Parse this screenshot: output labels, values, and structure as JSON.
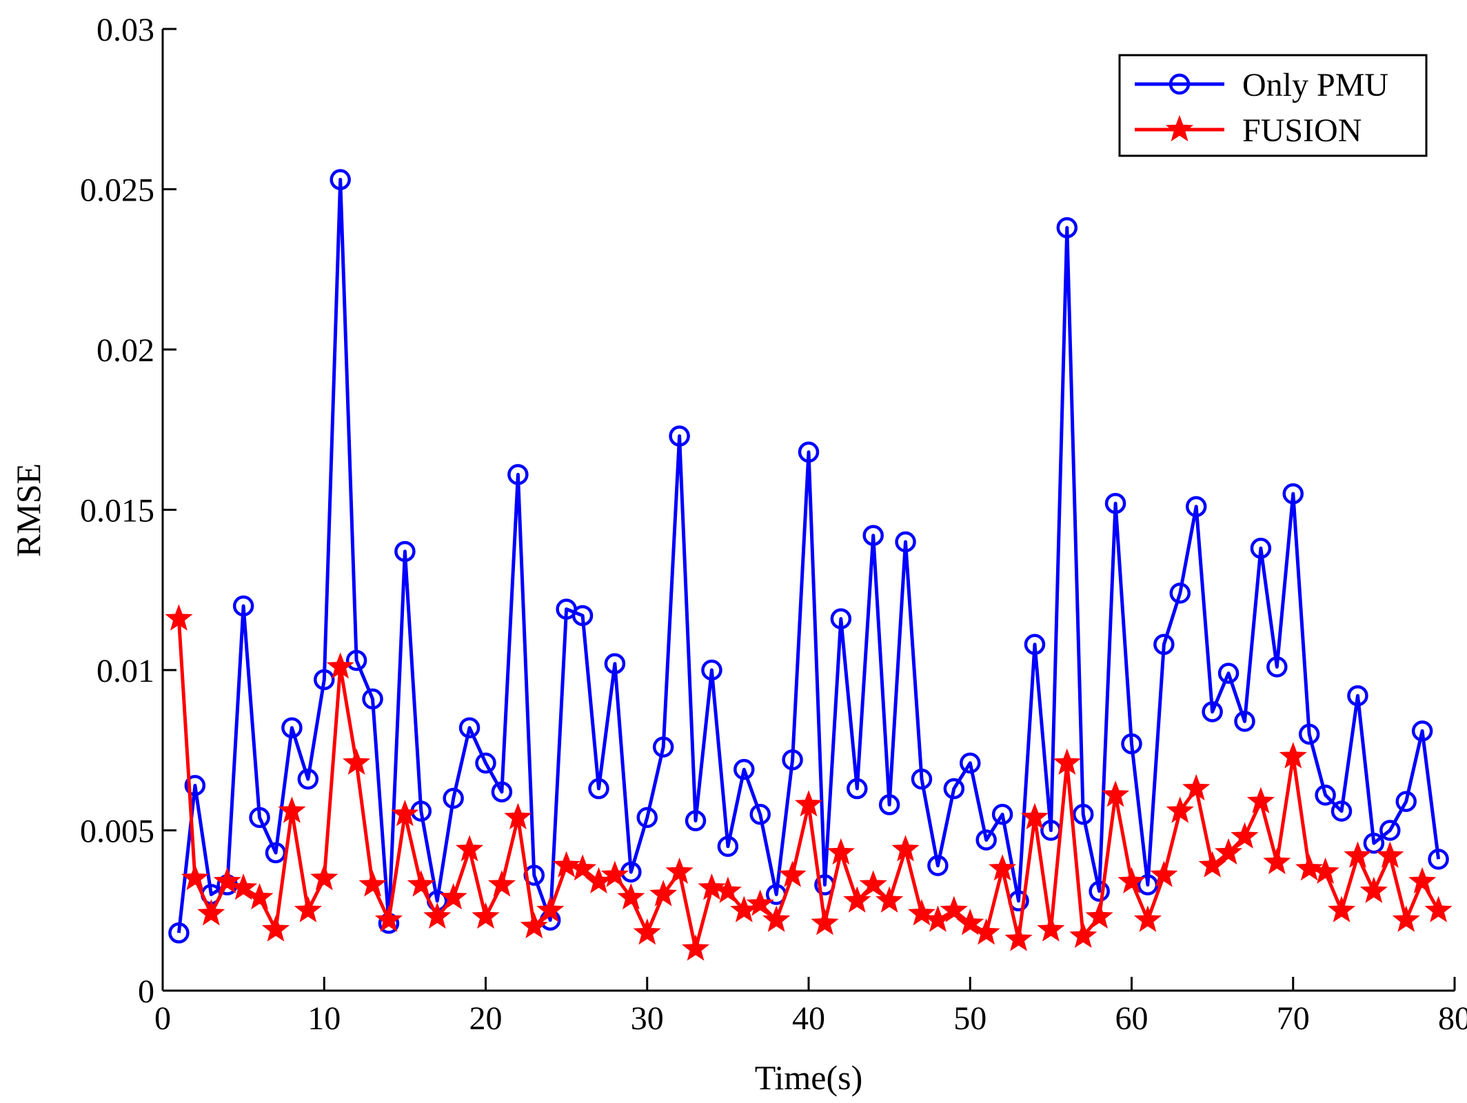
{
  "chart_data": {
    "type": "line",
    "title": "",
    "xlabel": "Time(s)",
    "ylabel": "RMSE",
    "xlim": [
      0,
      80
    ],
    "ylim": [
      0,
      0.03
    ],
    "grid": false,
    "legend_position": "top-right",
    "x_ticks": [
      0,
      10,
      20,
      30,
      40,
      50,
      60,
      70,
      80
    ],
    "x_tick_labels": [
      "0",
      "10",
      "20",
      "30",
      "40",
      "50",
      "60",
      "70",
      "80"
    ],
    "y_ticks": [
      0,
      0.005,
      0.01,
      0.015,
      0.02,
      0.025,
      0.03
    ],
    "y_tick_labels": [
      "0",
      "0.005",
      "0.01",
      "0.015",
      "0.02",
      "0.025",
      "0.03"
    ],
    "x": [
      1,
      2,
      3,
      4,
      5,
      6,
      7,
      8,
      9,
      10,
      11,
      12,
      13,
      14,
      15,
      16,
      17,
      18,
      19,
      20,
      21,
      22,
      23,
      24,
      25,
      26,
      27,
      28,
      29,
      30,
      31,
      32,
      33,
      34,
      35,
      36,
      37,
      38,
      39,
      40,
      41,
      42,
      43,
      44,
      45,
      46,
      47,
      48,
      49,
      50,
      51,
      52,
      53,
      54,
      55,
      56,
      57,
      58,
      59,
      60,
      61,
      62,
      63,
      64,
      65,
      66,
      67,
      68,
      69,
      70,
      71,
      72,
      73,
      74,
      75,
      76,
      77,
      78,
      79
    ],
    "series": [
      {
        "name": "Only PMU",
        "color": "#0000ff",
        "marker": "circle",
        "values": [
          0.0018,
          0.0064,
          0.003,
          0.0033,
          0.012,
          0.0054,
          0.0043,
          0.0082,
          0.0066,
          0.0097,
          0.0253,
          0.0103,
          0.0091,
          0.0021,
          0.0137,
          0.0056,
          0.0028,
          0.006,
          0.0082,
          0.0071,
          0.0062,
          0.0161,
          0.0036,
          0.0022,
          0.0119,
          0.0117,
          0.0063,
          0.0102,
          0.0037,
          0.0054,
          0.0076,
          0.0173,
          0.0053,
          0.01,
          0.0045,
          0.0069,
          0.0055,
          0.003,
          0.0072,
          0.0168,
          0.0033,
          0.0116,
          0.0063,
          0.0142,
          0.0058,
          0.014,
          0.0066,
          0.0039,
          0.0063,
          0.0071,
          0.0047,
          0.0055,
          0.0028,
          0.0108,
          0.005,
          0.0238,
          0.0055,
          0.0031,
          0.0152,
          0.0077,
          0.0033,
          0.0108,
          0.0124,
          0.0151,
          0.0087,
          0.0099,
          0.0084,
          0.0138,
          0.0101,
          0.0155,
          0.008,
          0.0061,
          0.0056,
          0.0092,
          0.0046,
          0.005,
          0.0059,
          0.0081,
          0.0041
        ]
      },
      {
        "name": "FUSION",
        "color": "#ff0000",
        "marker": "star",
        "values": [
          0.0116,
          0.0035,
          0.0024,
          0.0034,
          0.0032,
          0.0029,
          0.0019,
          0.0056,
          0.0025,
          0.0035,
          0.0101,
          0.0071,
          0.0033,
          0.0022,
          0.0055,
          0.0033,
          0.0023,
          0.0029,
          0.0044,
          0.0023,
          0.0033,
          0.0054,
          0.002,
          0.0025,
          0.0039,
          0.0038,
          0.0034,
          0.0036,
          0.0029,
          0.0018,
          0.003,
          0.0037,
          0.0013,
          0.0032,
          0.0031,
          0.0025,
          0.0027,
          0.0022,
          0.0036,
          0.0058,
          0.0021,
          0.0043,
          0.0028,
          0.0033,
          0.0028,
          0.0044,
          0.0024,
          0.0022,
          0.0025,
          0.0021,
          0.0018,
          0.0038,
          0.0016,
          0.0054,
          0.0019,
          0.0071,
          0.0017,
          0.0023,
          0.0061,
          0.0034,
          0.0022,
          0.0036,
          0.0056,
          0.0063,
          0.0039,
          0.0043,
          0.0048,
          0.0059,
          0.004,
          0.0073,
          0.0038,
          0.0037,
          0.0025,
          0.0042,
          0.0031,
          0.0042,
          0.0022,
          0.0034,
          0.0025
        ]
      }
    ]
  }
}
